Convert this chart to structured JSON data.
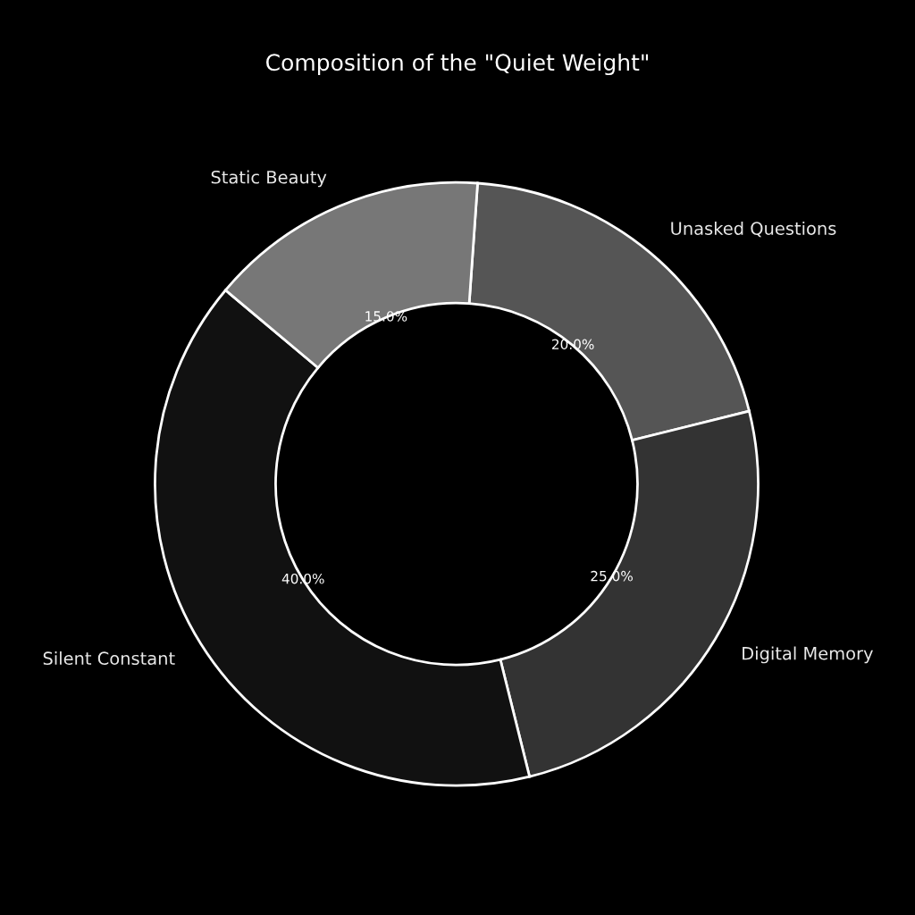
{
  "chart_data": {
    "type": "donut",
    "title": "Composition of the \"Quiet Weight\"",
    "categories": [
      "Unasked Questions",
      "Digital Memory",
      "Silent Constant",
      "Static Beauty"
    ],
    "values": [
      20,
      25,
      40,
      15
    ],
    "colors": [
      "#555555",
      "#333333",
      "#111111",
      "#777777"
    ],
    "value_labels": [
      "20.0%",
      "25.0%",
      "40.0%",
      "15.0%"
    ]
  }
}
